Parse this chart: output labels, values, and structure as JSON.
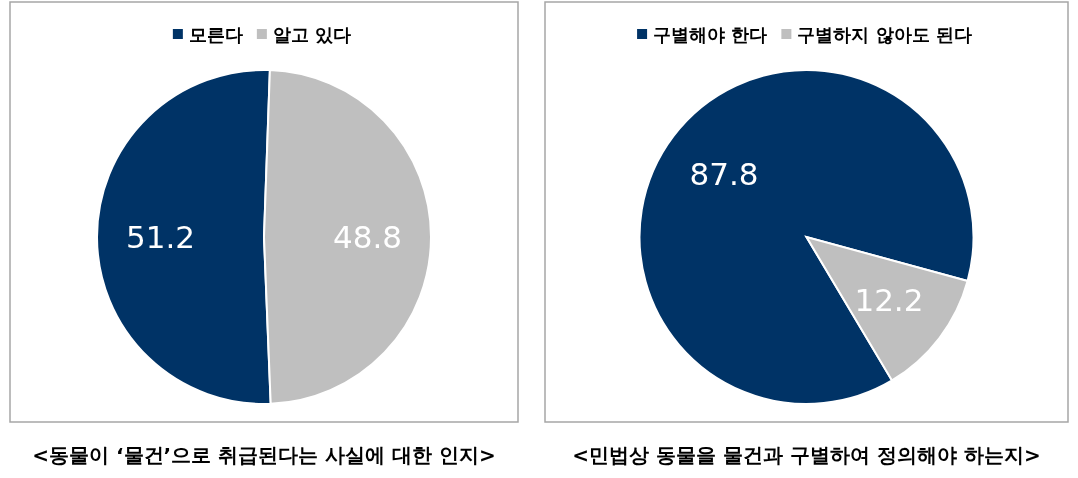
{
  "chart_data": [
    {
      "type": "pie",
      "categories": [
        "모른다",
        "알고 있다"
      ],
      "values": [
        51.2,
        48.8
      ],
      "colors": [
        "#003366",
        "#bfbfbf"
      ],
      "legend": "top",
      "data_labels": true,
      "annotations": [
        "<동물이 ‘물건’으로 취급된다는 사실에 대한 인지>"
      ]
    },
    {
      "type": "pie",
      "categories": [
        "구별해야 한다",
        "구별하지 않아도 된다"
      ],
      "values": [
        87.8,
        12.2
      ],
      "colors": [
        "#003366",
        "#bfbfbf"
      ],
      "legend": "top",
      "data_labels": true,
      "annotations": [
        "<민법상 동물을 물건과 구별하여 정의해야 하는지>"
      ]
    }
  ]
}
